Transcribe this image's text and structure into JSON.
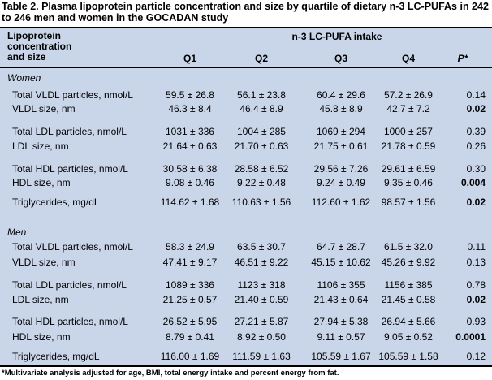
{
  "caption": "Table 2. Plasma lipoprotein particle concentration and size by quartile of dietary n-3 LC-PUFAs in 242 to 246 men and women in the GOCADAN study",
  "header": {
    "label": "Lipoprotein concentration and size",
    "intake": "n-3 LC-PUFA intake",
    "q1": "Q1",
    "q2": "Q2",
    "q3": "Q3",
    "q4": "Q4",
    "p": "P*"
  },
  "women": {
    "title": "Women",
    "rows": [
      {
        "label": "Total VLDL particles, nmol/L",
        "q1": "59.5 ± 26.8",
        "q2": "56.1 ± 23.8",
        "q3": "60.4 ± 29.6",
        "q4": "57.2 ± 26.9",
        "p": "0.14"
      },
      {
        "label": "VLDL size, nm",
        "q1": "46.3 ± 8.4",
        "q2": "46.4 ± 8.9",
        "q3": "45.8 ± 8.9",
        "q4": "42.7 ± 7.2",
        "p": "0.02"
      },
      {
        "label": "Total LDL particles, nmol/L",
        "q1": "1031 ± 336",
        "q2": "1004 ± 285",
        "q3": "1069 ± 294",
        "q4": "1000 ± 257",
        "p": "0.39"
      },
      {
        "label": "LDL size, nm",
        "q1": "21.64 ± 0.63",
        "q2": "21.70 ± 0.63",
        "q3": "21.75 ± 0.61",
        "q4": "21.78 ± 0.59",
        "p": "0.26"
      },
      {
        "label": "Total HDL particles, nmol/L",
        "q1": "30.58 ± 6.38",
        "q2": "28.58 ± 6.52",
        "q3": "29.56 ± 7.26",
        "q4": "29.61 ± 6.59",
        "p": "0.30"
      },
      {
        "label": "HDL size, nm",
        "q1": "9.08 ± 0.46",
        "q2": "9.22 ± 0.48",
        "q3": "9.24 ± 0.49",
        "q4": "9.35 ± 0.46",
        "p": "0.004"
      },
      {
        "label": "Triglycerides, mg/dL",
        "q1": "114.62 ± 1.68",
        "q2": "110.63 ± 1.56",
        "q3": "112.60 ± 1.62",
        "q4": "98.57 ± 1.56",
        "p": "0.02"
      }
    ]
  },
  "men": {
    "title": "Men",
    "rows": [
      {
        "label": "Total VLDL particles, nmol/L",
        "q1": "58.3 ± 24.9",
        "q2": "63.5 ± 30.7",
        "q3": "64.7 ± 28.7",
        "q4": "61.5 ± 32.0",
        "p": "0.11"
      },
      {
        "label": "VLDL size, nm",
        "q1": "47.41 ± 9.17",
        "q2": "46.51 ± 9.22",
        "q3": "45.15 ± 10.62",
        "q4": "45.26 ± 9.92",
        "p": "0.13"
      },
      {
        "label": "Total LDL particles, nmol/L",
        "q1": "1089 ± 336",
        "q2": "1123 ± 318",
        "q3": "1106 ± 355",
        "q4": "1156 ± 385",
        "p": "0.78"
      },
      {
        "label": "LDL size, nm",
        "q1": "21.25 ± 0.57",
        "q2": "21.40 ± 0.59",
        "q3": "21.43 ± 0.64",
        "q4": "21.45 ± 0.58",
        "p": "0.02"
      },
      {
        "label": "Total HDL particles, nmol/L",
        "q1": "26.52 ± 5.95",
        "q2": "27.21 ± 5.87",
        "q3": "27.94 ± 5.38",
        "q4": "26.94 ± 5.66",
        "p": "0.93"
      },
      {
        "label": "HDL size, nm",
        "q1": "8.79 ± 0.41",
        "q2": "8.92 ± 0.50",
        "q3": "9.11 ± 0.57",
        "q4": "9.05 ± 0.52",
        "p": "0.0001"
      },
      {
        "label": "Triglycerides, mg/dL",
        "q1": "116.00 ± 1.69",
        "q2": "111.59 ± 1.63",
        "q3": "105.59 ± 1.67",
        "q4": "105.59 ± 1.58",
        "p": "0.12"
      }
    ]
  },
  "footnote": "*Multivariate analysis adjusted for age, BMI, total energy intake and percent energy from fat."
}
